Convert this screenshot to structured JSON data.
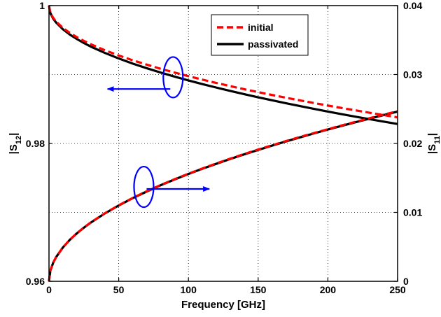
{
  "chart_data": {
    "type": "line",
    "title": "",
    "xlabel": "Frequency [GHz]",
    "ylabel_left": {
      "base": "|S",
      "sub": "12",
      "end": "|"
    },
    "ylabel_right": {
      "base": "|S",
      "sub": "11",
      "end": "|"
    },
    "xlim": [
      0,
      250
    ],
    "ylim_left": [
      0.96,
      1.0
    ],
    "ylim_right": [
      0,
      0.04
    ],
    "x_ticks": [
      "0",
      "50",
      "100",
      "150",
      "200",
      "250"
    ],
    "y_left_ticks": [
      "0.96",
      "0.98",
      "1"
    ],
    "y_right_ticks": [
      "0",
      "0.01",
      "0.02",
      "0.03",
      "0.04"
    ],
    "grid": true,
    "grid_style": "dotted",
    "legend_position": "top-right",
    "colors": {
      "initial": "#ff0000",
      "passivated": "#000000",
      "annotation": "#0000ff"
    },
    "x": [
      0,
      1,
      3,
      5,
      10,
      15,
      20,
      25,
      30,
      40,
      50,
      60,
      70,
      80,
      90,
      100,
      110,
      120,
      130,
      140,
      150,
      160,
      170,
      180,
      190,
      200,
      210,
      220,
      230,
      240,
      250
    ],
    "series": [
      {
        "name": "initial",
        "axis": "left",
        "style": "dashed",
        "values": [
          1.0,
          0.99897,
          0.99822,
          0.99771,
          0.99676,
          0.99603,
          0.99542,
          0.99488,
          0.99439,
          0.99353,
          0.99276,
          0.99207,
          0.99144,
          0.99084,
          0.99029,
          0.98976,
          0.98926,
          0.98878,
          0.98832,
          0.98787,
          0.98745,
          0.98703,
          0.98663,
          0.98625,
          0.98587,
          0.9855,
          0.98514,
          0.9848,
          0.98445,
          0.98412,
          0.98379
        ]
      },
      {
        "name": "passivated",
        "axis": "left",
        "style": "solid",
        "values": [
          1.0,
          0.99891,
          0.99811,
          0.99757,
          0.99656,
          0.99579,
          0.99515,
          0.99457,
          0.99405,
          0.99314,
          0.99233,
          0.99159,
          0.99092,
          0.99029,
          0.9897,
          0.98914,
          0.98861,
          0.98811,
          0.98762,
          0.98715,
          0.98669,
          0.98626,
          0.98583,
          0.98542,
          0.98502,
          0.98463,
          0.98425,
          0.98388,
          0.98352,
          0.98317,
          0.98282
        ]
      },
      {
        "name": "initial",
        "axis": "right",
        "style": "dashed",
        "values": [
          0.0,
          0.00156,
          0.0027,
          0.00349,
          0.00493,
          0.00604,
          0.00698,
          0.0078,
          0.00855,
          0.00987,
          0.01103,
          0.01209,
          0.01306,
          0.01396,
          0.01481,
          0.01561,
          0.01637,
          0.0171,
          0.0178,
          0.01847,
          0.01912,
          0.01974,
          0.02035,
          0.02094,
          0.02151,
          0.02207,
          0.02262,
          0.02315,
          0.02367,
          0.02418,
          0.02468
        ]
      },
      {
        "name": "passivated",
        "axis": "right",
        "style": "solid",
        "values": [
          0.0,
          0.00156,
          0.00269,
          0.00348,
          0.00492,
          0.00603,
          0.00696,
          0.00778,
          0.00852,
          0.00984,
          0.011,
          0.01206,
          0.01302,
          0.01393,
          0.01477,
          0.01557,
          0.01633,
          0.01705,
          0.01775,
          0.01842,
          0.01906,
          0.01969,
          0.0203,
          0.02088,
          0.02146,
          0.02202,
          0.02256,
          0.02309,
          0.02361,
          0.02412,
          0.02462
        ]
      }
    ],
    "annotations": [
      {
        "kind": "ellipse-arrow",
        "target_axis": "left",
        "ellipse_center": [
          89,
          0.9896
        ],
        "arrow_from": [
          87,
          0.9879
        ],
        "arrow_to": [
          42,
          0.9879
        ]
      },
      {
        "kind": "ellipse-arrow",
        "target_axis": "right",
        "ellipse_center": [
          68,
          0.0137
        ],
        "arrow_from": [
          70,
          0.0134
        ],
        "arrow_to": [
          115,
          0.0134
        ]
      }
    ]
  }
}
